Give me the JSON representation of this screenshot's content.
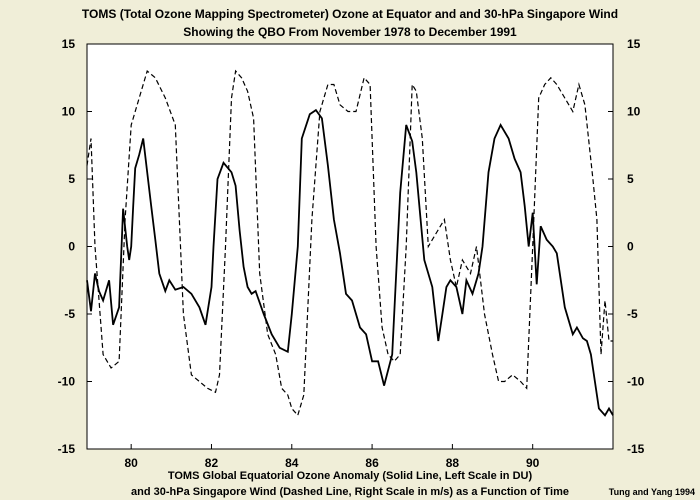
{
  "chart_data": {
    "type": "line",
    "title": "TOMS (Total Ozone Mapping Spectrometer) Ozone at Equator and and 30-hPa Singapore Wind",
    "subtitle": "Showing the QBO From November 1978 to December 1991",
    "caption_line1": "TOMS Global Equatorial Ozone Anomaly (Solid Line, Left Scale in DU)",
    "caption_line2": "and 30-hPa Singapore Wind (Dashed Line, Right Scale in m/s) as a Function of Time",
    "credit": "Tung and Yang 1994",
    "xlim": [
      78.9,
      92.0
    ],
    "ylim": [
      -15,
      15
    ],
    "x_ticks": [
      80,
      82,
      84,
      86,
      88,
      90
    ],
    "x_tick_labels": [
      "80",
      "82",
      "84",
      "86",
      "88",
      "90"
    ],
    "y_ticks": [
      15,
      10,
      5,
      0,
      -5,
      -10,
      -15
    ],
    "y_tick_labels": [
      "15",
      "10",
      "5",
      "0",
      "-5",
      "-10",
      "-15"
    ],
    "series": [
      {
        "name": "TOMS Global Equatorial Ozone Anomaly",
        "style": "solid",
        "x": [
          78.9,
          79.0,
          79.1,
          79.2,
          79.3,
          79.45,
          79.55,
          79.7,
          79.8,
          79.9,
          79.95,
          80.0,
          80.05,
          80.1,
          80.2,
          80.3,
          80.4,
          80.5,
          80.6,
          80.7,
          80.85,
          80.95,
          81.1,
          81.3,
          81.5,
          81.7,
          81.85,
          82.0,
          82.05,
          82.15,
          82.3,
          82.5,
          82.6,
          82.7,
          82.8,
          82.9,
          83.0,
          83.1,
          83.3,
          83.5,
          83.7,
          83.9,
          84.0,
          84.15,
          84.25,
          84.45,
          84.6,
          84.75,
          84.9,
          85.05,
          85.2,
          85.35,
          85.5,
          85.7,
          85.85,
          86.0,
          86.15,
          86.3,
          86.5,
          86.6,
          86.7,
          86.85,
          87.0,
          87.1,
          87.3,
          87.5,
          87.65,
          87.75,
          87.85,
          87.95,
          88.1,
          88.25,
          88.35,
          88.5,
          88.65,
          88.75,
          88.9,
          89.05,
          89.2,
          89.4,
          89.55,
          89.7,
          89.8,
          89.9,
          90.0,
          90.1,
          90.2,
          90.35,
          90.5,
          90.6,
          90.8,
          91.0,
          91.1,
          91.25,
          91.35,
          91.45,
          91.55,
          91.65,
          91.8,
          91.9,
          92.0
        ],
        "values": [
          -2.5,
          -4.8,
          -2.0,
          -3.3,
          -4.0,
          -2.5,
          -5.8,
          -4.5,
          2.8,
          0.0,
          -1.0,
          0.0,
          3.0,
          5.8,
          6.8,
          8.0,
          5.5,
          3.0,
          0.5,
          -2.0,
          -3.3,
          -2.5,
          -3.2,
          -3.0,
          -3.5,
          -4.5,
          -5.8,
          -3.0,
          0.0,
          5.0,
          6.2,
          5.5,
          4.5,
          1.2,
          -1.5,
          -3.0,
          -3.5,
          -3.3,
          -5.0,
          -6.5,
          -7.5,
          -7.8,
          -5.0,
          0.0,
          8.0,
          9.8,
          10.1,
          9.5,
          6.0,
          2.0,
          -0.5,
          -3.5,
          -4.0,
          -6.0,
          -6.5,
          -8.5,
          -8.5,
          -10.3,
          -8.0,
          -2.0,
          4.0,
          9.0,
          7.8,
          5.5,
          -1.0,
          -3.0,
          -7.0,
          -5.0,
          -3.0,
          -2.5,
          -3.0,
          -5.0,
          -2.5,
          -3.5,
          -2.0,
          0.0,
          5.5,
          8.0,
          9.0,
          8.0,
          6.5,
          5.5,
          3.0,
          0.0,
          2.5,
          -2.8,
          1.5,
          0.5,
          0.0,
          -0.5,
          -4.5,
          -6.5,
          -6.0,
          -6.8,
          -7.0,
          -8.0,
          -10.0,
          -12.0,
          -12.5,
          -12.0,
          -12.5
        ]
      },
      {
        "name": "30-hPa Singapore Wind",
        "style": "dashed",
        "x": [
          78.9,
          79.0,
          79.1,
          79.3,
          79.5,
          79.7,
          79.85,
          80.0,
          80.2,
          80.4,
          80.6,
          80.85,
          81.1,
          81.3,
          81.5,
          81.7,
          81.9,
          82.1,
          82.2,
          82.35,
          82.5,
          82.6,
          82.75,
          82.9,
          83.05,
          83.2,
          83.4,
          83.6,
          83.75,
          83.9,
          84.0,
          84.15,
          84.3,
          84.5,
          84.7,
          84.9,
          85.05,
          85.2,
          85.4,
          85.6,
          85.8,
          85.95,
          86.1,
          86.25,
          86.4,
          86.55,
          86.7,
          86.85,
          87.0,
          87.1,
          87.25,
          87.4,
          87.6,
          87.8,
          87.95,
          88.1,
          88.25,
          88.45,
          88.6,
          88.8,
          89.0,
          89.15,
          89.3,
          89.5,
          89.7,
          89.85,
          90.0,
          90.15,
          90.3,
          90.45,
          90.6,
          90.8,
          91.0,
          91.15,
          91.3,
          91.5,
          91.6,
          91.7,
          91.8,
          91.9,
          92.0
        ],
        "values": [
          6.0,
          8.0,
          0.0,
          -8.0,
          -9.0,
          -8.5,
          2.0,
          9.0,
          11.0,
          13.0,
          12.5,
          11.0,
          9.0,
          -5.0,
          -9.5,
          -10.0,
          -10.5,
          -10.8,
          -9.5,
          0.0,
          11.0,
          13.0,
          12.5,
          11.5,
          9.5,
          -2.0,
          -6.5,
          -8.0,
          -10.5,
          -11.0,
          -12.0,
          -12.5,
          -11.0,
          2.0,
          10.0,
          12.0,
          12.0,
          10.5,
          10.0,
          10.0,
          12.5,
          12.0,
          0.0,
          -6.0,
          -8.0,
          -8.5,
          -8.0,
          0.0,
          12.0,
          11.5,
          8.0,
          0.0,
          1.0,
          2.0,
          -1.0,
          -3.0,
          -1.0,
          -2.0,
          0.0,
          -5.0,
          -8.0,
          -10.0,
          -10.0,
          -9.5,
          -10.0,
          -10.5,
          0.0,
          11.0,
          12.0,
          12.5,
          12.0,
          11.0,
          10.0,
          12.0,
          10.5,
          5.0,
          2.0,
          -8.0,
          -4.0,
          -7.0,
          -7.0
        ]
      }
    ]
  }
}
